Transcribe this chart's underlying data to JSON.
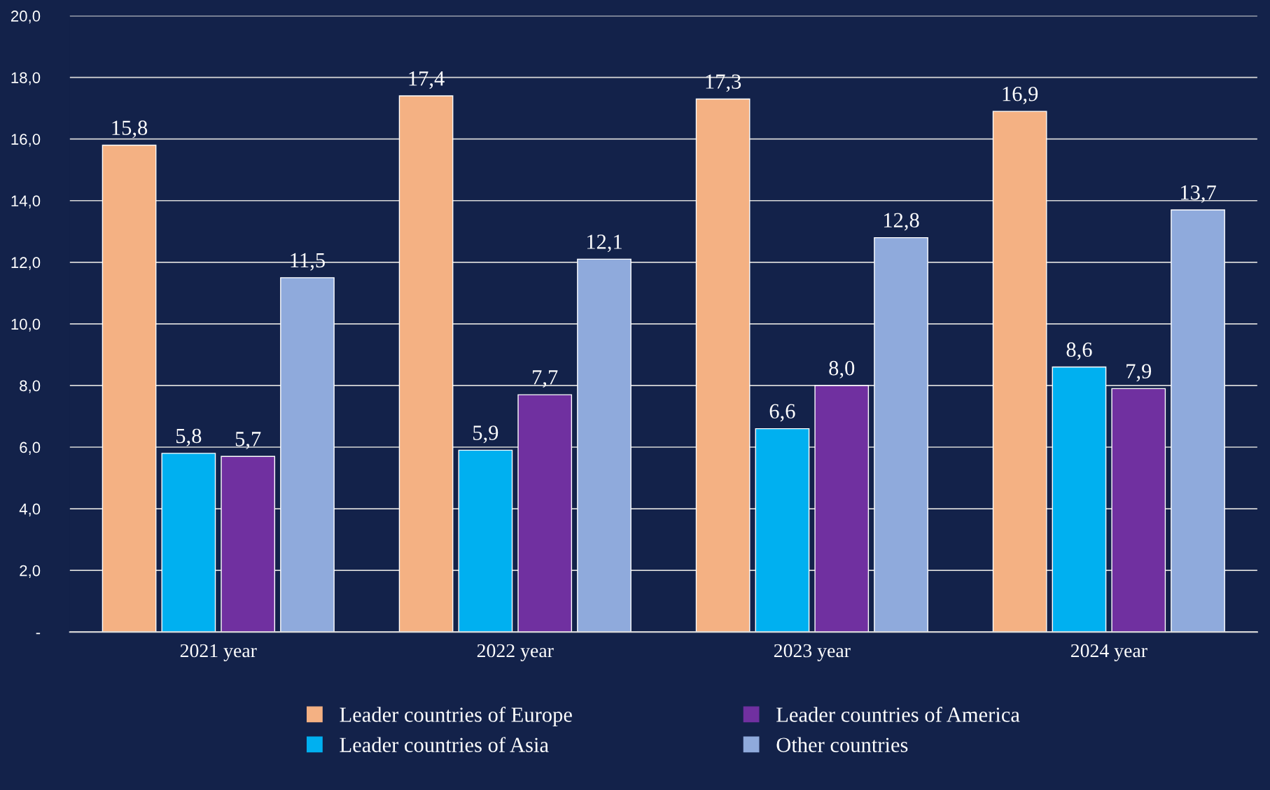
{
  "chart_data": {
    "type": "bar",
    "categories": [
      "2021 year",
      "2022 year",
      "2023 year",
      "2024 year"
    ],
    "series": [
      {
        "name": "Leader countries of Europe",
        "color": "#f4b183",
        "values": [
          15.8,
          17.4,
          17.3,
          16.9
        ],
        "value_labels": [
          "15,8",
          "17,4",
          "17,3",
          "16,9"
        ]
      },
      {
        "name": "Leader countries of Asia",
        "color": "#00b0f0",
        "values": [
          5.8,
          5.9,
          6.6,
          8.6
        ],
        "value_labels": [
          "5,8",
          "5,9",
          "6,6",
          "8,6"
        ]
      },
      {
        "name": "Leader countries of America",
        "color": "#7030a0",
        "values": [
          5.7,
          7.7,
          8.0,
          7.9
        ],
        "value_labels": [
          "5,7",
          "7,7",
          "8,0",
          "7,9"
        ]
      },
      {
        "name": "Other countries",
        "color": "#8faadc",
        "values": [
          11.5,
          12.1,
          12.8,
          13.7
        ],
        "value_labels": [
          "11,5",
          "12,1",
          "12,8",
          "13,7"
        ]
      }
    ],
    "ylim": [
      0,
      20
    ],
    "yticks": [
      {
        "value": 0,
        "label": "-"
      },
      {
        "value": 2,
        "label": "2,0"
      },
      {
        "value": 4,
        "label": "4,0"
      },
      {
        "value": 6,
        "label": "6,0"
      },
      {
        "value": 8,
        "label": "8,0"
      },
      {
        "value": 10,
        "label": "10,0"
      },
      {
        "value": 12,
        "label": "12,0"
      },
      {
        "value": 14,
        "label": "14,0"
      },
      {
        "value": 16,
        "label": "16,0"
      },
      {
        "value": 18,
        "label": "18,0"
      },
      {
        "value": 20,
        "label": "20,0"
      }
    ],
    "grid": "y",
    "legend": "bottom"
  }
}
